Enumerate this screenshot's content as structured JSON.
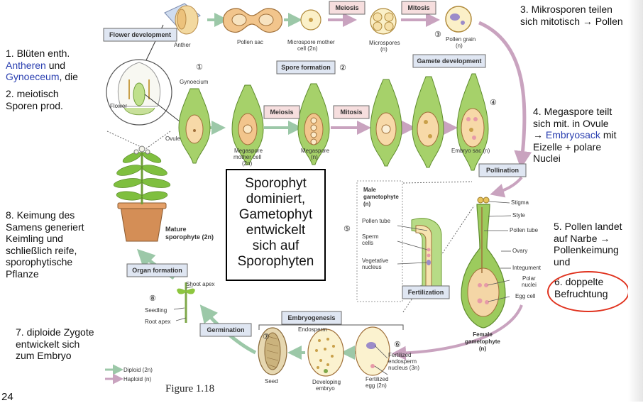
{
  "diagram": {
    "boxes": {
      "flower_development": "Flower development",
      "spore_formation": "Spore formation",
      "gamete_development": "Gamete development",
      "meiosis_top": "Meiosis",
      "mitosis_top": "Mitosis",
      "meiosis_mid": "Meiosis",
      "mitosis_mid": "Mitosis",
      "pollination": "Pollination",
      "fertilization": "Fertilization",
      "embryogenesis": "Embryogenesis",
      "germination": "Germination",
      "organ_formation": "Organ formation"
    },
    "step_numbers": {
      "s1": "①",
      "s2": "②",
      "s3": "③",
      "s4": "④",
      "s5": "⑤",
      "s6": "⑥",
      "s7": "⑦",
      "s8": "⑧"
    },
    "labels": {
      "anther": "Anther",
      "pollen_sac": "Pollen sac",
      "microspore_mother_1": "Microspore mother",
      "microspore_mother_2": "cell (2n)",
      "microspores_1": "Microspores",
      "microspores_2": "(n)",
      "pollen_grain_1": "Pollen grain",
      "pollen_grain_2": "(n)",
      "gynoecium": "Gynoecium",
      "flower": "Flower",
      "ovule": "Ovule",
      "megaspore_mother_1": "Megaspore",
      "megaspore_mother_2": "mother cell",
      "megaspore_mother_3": "(2n)",
      "megaspore_1": "Megaspore",
      "megaspore_2": "(n)",
      "embryo_sac": "Embryo sac (n)",
      "male_gam_1": "Male",
      "male_gam_2": "gametophyte",
      "male_gam_3": "(n)",
      "pollen_tube_left": "Pollen tube",
      "sperm_1": "Sperm",
      "sperm_2": "cells",
      "veg_1": "Vegetative",
      "veg_2": "nucleus",
      "stigma": "Stigma",
      "style": "Style",
      "pollen_tube_right": "Pollen tube",
      "ovary": "Ovary",
      "integument": "Integument",
      "polar_1": "Polar",
      "polar_2": "nuclei",
      "egg_cell": "Egg cell",
      "female_1": "Female",
      "female_2": "gametophyte",
      "female_3": "(n)",
      "endosperm": "Endosperm",
      "fert_endo_1": "Fertilized",
      "fert_endo_2": "endosperm",
      "fert_endo_3": "nucleus (3n)",
      "fert_egg_1": "Fertilized",
      "fert_egg_2": "egg (2n)",
      "dev_emb_1": "Developing",
      "dev_emb_2": "embryo",
      "seed": "Seed",
      "shoot_apex": "Shoot apex",
      "seedling": "Seedling",
      "root_apex": "Root apex",
      "mature_1": "Mature",
      "mature_2": "sporophyte (2n)",
      "legend_diploid": "Diploid (2n)",
      "legend_haploid": "Haploid (n)"
    },
    "colors": {
      "green": "#8dc63f",
      "green_light": "#c7e39a",
      "pink_arrow": "#c9a3bf",
      "green_arrow": "#9cc8a8",
      "box_blue_fill": "#dfe6f2",
      "box_pink_fill": "#f6dede",
      "box_yellow_fill": "#fdf2c4",
      "box_border": "#6b6b6b",
      "note_link": "#2a3fb0",
      "oval_red": "#e0321e"
    }
  },
  "notes": {
    "n1_a": "1. Blüten enth.",
    "n1_b": "Antheren",
    "n1_c": "und",
    "n1_d": "Gynoeceum",
    "n1_e": ", die",
    "n2_a": "2. meiotisch",
    "n2_b": "Sporen prod.",
    "n3_a": "3. Mikrosporen teilen",
    "n3_b": "sich mitotisch → Pollen",
    "n4_a": "4. Megaspore teilt",
    "n4_b": "sich mit. in Ovule",
    "n4_c": "→",
    "n4_d": "Embryosack",
    "n4_e": "mit",
    "n4_f": "Eizelle + polare",
    "n4_g": "Nuclei",
    "n5_a": "5. Pollen landet",
    "n5_b": "auf Narbe →",
    "n5_c": "Pollenkeimung",
    "n5_d": "und",
    "n6_a": "6. doppelte",
    "n6_b": "Befruchtung",
    "n7_a": "7. diploide Zygote",
    "n7_b": "entwickelt sich",
    "n7_c": "zum Embryo",
    "n8_a": "8. Keimung des",
    "n8_b": "Samens generiert",
    "n8_c": "Keimling und",
    "n8_d": "schließlich reife,",
    "n8_e": "sporophytische",
    "n8_f": "Pflanze"
  },
  "center_box": {
    "line1": "Sporophyt",
    "line2": "dominiert,",
    "line3": "Gametophyt",
    "line4": "entwickelt",
    "line5": "sich auf",
    "line6": "Sporophyten"
  },
  "figure_caption": "Figure 1.18",
  "page_number": "24"
}
